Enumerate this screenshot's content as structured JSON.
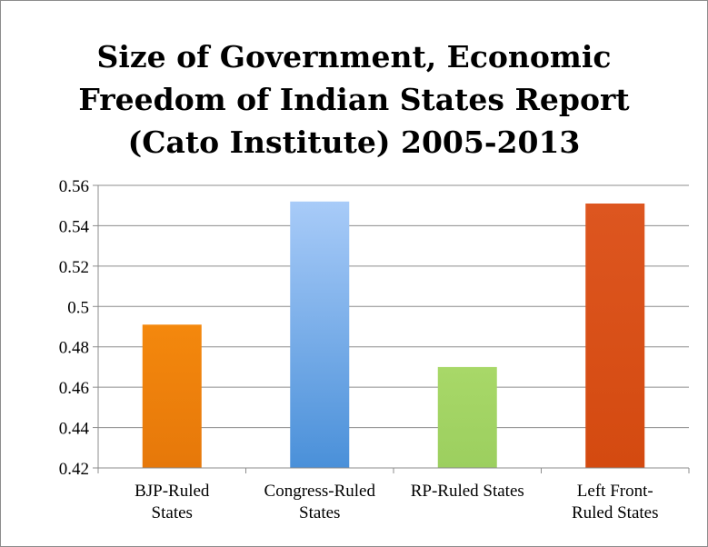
{
  "chart_data": {
    "type": "bar",
    "title_lines": [
      "Size of Government, Economic",
      "Freedom of Indian States Report",
      "(Cato Institute) 2005-2013"
    ],
    "categories": [
      [
        "BJP-Ruled",
        "States"
      ],
      [
        "Congress-Ruled",
        "States"
      ],
      [
        "RP-Ruled States"
      ],
      [
        "Left Front-",
        "Ruled States"
      ]
    ],
    "values": [
      0.491,
      0.552,
      0.47,
      0.551
    ],
    "bar_colors": [
      [
        "#f4880d",
        "#e6780a"
      ],
      [
        "#a8cbf8",
        "#4a90d9"
      ],
      [
        "#a8d868",
        "#9ccf5f"
      ],
      [
        "#dd5620",
        "#d44a10"
      ]
    ],
    "ylim": [
      0.42,
      0.56
    ],
    "yticks": [
      "0.42",
      "0.44",
      "0.46",
      "0.48",
      "0.5",
      "0.52",
      "0.54",
      "0.56"
    ],
    "grid": true,
    "legend": "none"
  }
}
